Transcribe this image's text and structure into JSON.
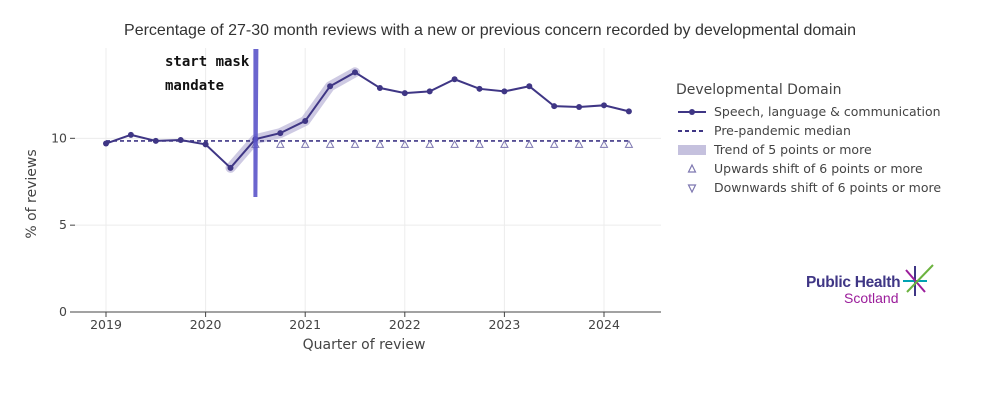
{
  "chart_data": {
    "type": "line",
    "title": "Percentage of 27-30 month reviews with a new or previous concern recorded by developmental domain",
    "xlabel": "Quarter of review",
    "ylabel": "% of reviews",
    "x_ticks": [
      "2019",
      "2020",
      "2021",
      "2022",
      "2023",
      "2024"
    ],
    "y_ticks": [
      0,
      5,
      10
    ],
    "ylim": [
      0,
      15.2
    ],
    "grid": true,
    "legend_placement": "right",
    "legend_title": "Developmental Domain",
    "x": [
      "2019 Q1",
      "2019 Q2",
      "2019 Q3",
      "2019 Q4",
      "2020 Q1",
      "2020 Q2",
      "2020 Q3",
      "2020 Q4",
      "2021 Q1",
      "2021 Q2",
      "2021 Q3",
      "2021 Q4",
      "2022 Q1",
      "2022 Q2",
      "2022 Q3",
      "2022 Q4",
      "2023 Q1",
      "2023 Q2",
      "2023 Q3",
      "2023 Q4",
      "2024 Q1",
      "2024 Q2"
    ],
    "series": [
      {
        "name": "Speech, language & communication",
        "style": "line-markers",
        "color": "#3f3685",
        "values": [
          9.7,
          10.2,
          9.85,
          9.9,
          9.65,
          8.3,
          9.95,
          10.3,
          11.0,
          13.0,
          13.8,
          12.9,
          12.6,
          12.7,
          13.4,
          12.85,
          12.7,
          13.0,
          11.85,
          11.8,
          11.9,
          11.55
        ]
      },
      {
        "name": "Pre-pandemic median",
        "style": "dashed",
        "color": "#3f3685",
        "values": [
          9.85,
          9.85,
          9.85,
          9.85,
          9.85,
          9.85,
          9.85,
          9.85,
          9.85,
          9.85,
          9.85,
          9.85,
          9.85,
          9.85,
          9.85,
          9.85,
          9.85,
          9.85,
          9.85,
          9.85,
          9.85,
          9.85
        ]
      },
      {
        "name": "Trend of 5 points or more",
        "style": "band",
        "color": "#c5c1de",
        "x_range": [
          "2020 Q2",
          "2021 Q3"
        ]
      },
      {
        "name": "Upwards shift of 6 points or more",
        "style": "triangle-up",
        "color": "#7d77b0",
        "x_range": [
          "2020 Q3",
          "2024 Q2"
        ],
        "y": 9.65
      },
      {
        "name": "Downwards shift of 6 points or more",
        "style": "triangle-down",
        "color": "#7d77b0"
      }
    ],
    "annotations": [
      {
        "text": "start mask mandate",
        "lines": [
          "start mask",
          "mandate"
        ],
        "x": "2020 Q3"
      }
    ]
  },
  "logo": {
    "line1": "Public Health",
    "line2": "Scotland",
    "colors": {
      "primary": "#3f3685",
      "secondary": "#9b1d9b",
      "green": "#6cb33f",
      "teal": "#00a2b1"
    }
  }
}
